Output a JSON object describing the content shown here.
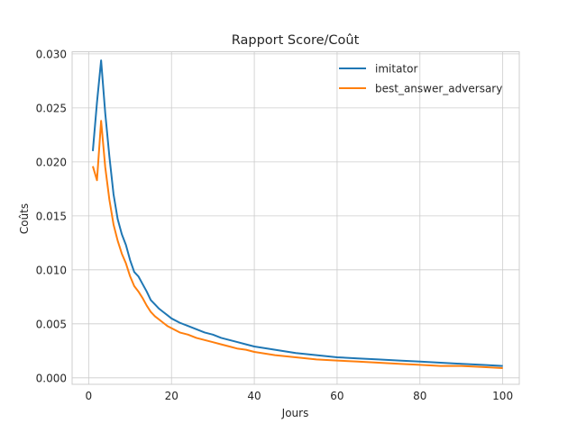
{
  "chart_data": {
    "type": "line",
    "title": "Rapport Score/Coût",
    "xlabel": "Jours",
    "ylabel": "Coûts",
    "xlim": [
      -4,
      104
    ],
    "ylim": [
      -0.0006,
      0.0302
    ],
    "xticks": [
      0,
      20,
      40,
      60,
      80,
      100
    ],
    "yticks": [
      0.0,
      0.005,
      0.01,
      0.015,
      0.02,
      0.025,
      0.03
    ],
    "xtick_labels": [
      "0",
      "20",
      "40",
      "60",
      "80",
      "100"
    ],
    "ytick_labels": [
      "0.000",
      "0.005",
      "0.010",
      "0.015",
      "0.020",
      "0.025",
      "0.030"
    ],
    "grid": true,
    "legend_position": "top-right",
    "x": [
      1,
      2,
      3,
      4,
      5,
      6,
      7,
      8,
      9,
      10,
      11,
      12,
      13,
      14,
      15,
      16,
      17,
      18,
      19,
      20,
      22,
      24,
      26,
      28,
      30,
      32,
      34,
      36,
      38,
      40,
      45,
      50,
      55,
      60,
      65,
      70,
      75,
      80,
      85,
      90,
      95,
      100
    ],
    "series": [
      {
        "name": "imitator",
        "color": "#1f77b4",
        "values": [
          0.021,
          0.0255,
          0.0294,
          0.0245,
          0.0205,
          0.017,
          0.0147,
          0.0133,
          0.0123,
          0.0109,
          0.0098,
          0.0094,
          0.0087,
          0.008,
          0.0072,
          0.0068,
          0.0064,
          0.0061,
          0.0058,
          0.0055,
          0.0051,
          0.0048,
          0.0045,
          0.0042,
          0.004,
          0.0037,
          0.0035,
          0.0033,
          0.0031,
          0.0029,
          0.0026,
          0.0023,
          0.0021,
          0.0019,
          0.0018,
          0.0017,
          0.0016,
          0.0015,
          0.0014,
          0.0013,
          0.0012,
          0.0011
        ]
      },
      {
        "name": "best_answer_adversary",
        "color": "#ff7f0e",
        "values": [
          0.0196,
          0.0183,
          0.0238,
          0.0195,
          0.0165,
          0.0142,
          0.0127,
          0.0115,
          0.0106,
          0.0094,
          0.0085,
          0.008,
          0.0074,
          0.0067,
          0.0061,
          0.0057,
          0.0054,
          0.0051,
          0.0048,
          0.0046,
          0.0042,
          0.004,
          0.0037,
          0.0035,
          0.0033,
          0.0031,
          0.0029,
          0.0027,
          0.0026,
          0.0024,
          0.0021,
          0.0019,
          0.0017,
          0.0016,
          0.0015,
          0.0014,
          0.0013,
          0.0012,
          0.0011,
          0.0011,
          0.001,
          0.0009
        ]
      }
    ]
  }
}
